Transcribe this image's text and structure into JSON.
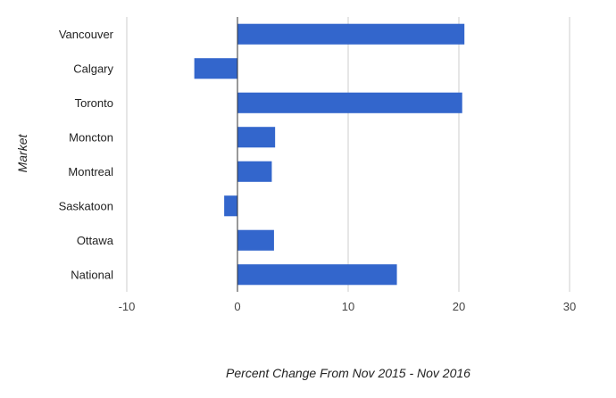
{
  "chart_data": {
    "type": "bar",
    "orientation": "horizontal",
    "categories": [
      "Vancouver",
      "Calgary",
      "Toronto",
      "Moncton",
      "Montreal",
      "Saskatoon",
      "Ottawa",
      "National"
    ],
    "values": [
      20.5,
      -3.9,
      20.3,
      3.4,
      3.1,
      -1.2,
      3.3,
      14.4
    ],
    "title": "",
    "xlabel": "Percent Change From Nov 2015 - Nov 2016",
    "ylabel": "Market",
    "xlim": [
      -10,
      30
    ],
    "xticks": [
      -10,
      0,
      10,
      20,
      30
    ],
    "grid": true,
    "legend": "none",
    "bar_color": "#3366cc",
    "grid_color": "#cccccc",
    "zero_line_color": "#333333"
  }
}
